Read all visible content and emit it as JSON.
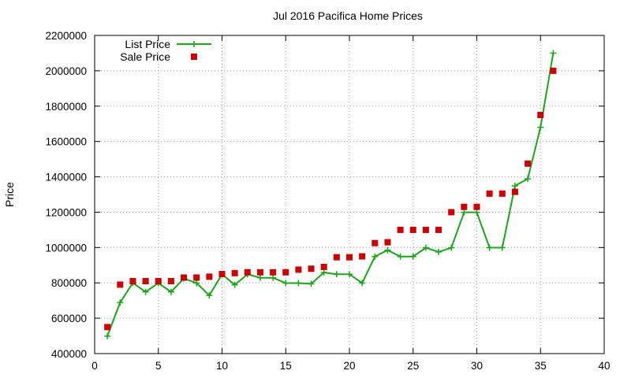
{
  "chart_data": {
    "type": "line",
    "title": "Jul 2016 Pacifica Home Prices",
    "xlabel": "",
    "ylabel": "Price",
    "xlim": [
      0,
      40
    ],
    "ylim": [
      400000,
      2200000
    ],
    "x_ticks": [
      "0",
      "5",
      "10",
      "15",
      "20",
      "25",
      "30",
      "35",
      "40"
    ],
    "y_ticks": [
      "400000",
      "600000",
      "800000",
      "1000000",
      "1200000",
      "1400000",
      "1600000",
      "1800000",
      "2000000",
      "2200000"
    ],
    "grid": true,
    "legend_position": "top-left",
    "series": [
      {
        "name": "List Price",
        "style": "line-with-plus-markers",
        "color": "#1aa51a",
        "points": [
          [
            1,
            499000
          ],
          [
            2,
            689000
          ],
          [
            3,
            800000
          ],
          [
            4,
            749000
          ],
          [
            5,
            799000
          ],
          [
            6,
            749000
          ],
          [
            7,
            825000
          ],
          [
            8,
            799000
          ],
          [
            9,
            729000
          ],
          [
            10,
            849000
          ],
          [
            11,
            789000
          ],
          [
            12,
            849000
          ],
          [
            13,
            829000
          ],
          [
            14,
            829000
          ],
          [
            15,
            799000
          ],
          [
            16,
            799000
          ],
          [
            17,
            795000
          ],
          [
            18,
            859000
          ],
          [
            19,
            849000
          ],
          [
            20,
            849000
          ],
          [
            21,
            799000
          ],
          [
            22,
            949000
          ],
          [
            23,
            985000
          ],
          [
            24,
            949000
          ],
          [
            25,
            949000
          ],
          [
            26,
            999000
          ],
          [
            27,
            975000
          ],
          [
            28,
            999000
          ],
          [
            29,
            1199000
          ],
          [
            30,
            1199000
          ],
          [
            31,
            999000
          ],
          [
            32,
            999000
          ],
          [
            33,
            1349000
          ],
          [
            34,
            1389000
          ],
          [
            35,
            1680000
          ],
          [
            36,
            2100000
          ]
        ]
      },
      {
        "name": "Sale Price",
        "style": "square-markers",
        "color": "#cc0000",
        "points": [
          [
            1,
            550000
          ],
          [
            2,
            790000
          ],
          [
            3,
            810000
          ],
          [
            4,
            810000
          ],
          [
            5,
            810000
          ],
          [
            6,
            810000
          ],
          [
            7,
            830000
          ],
          [
            8,
            830000
          ],
          [
            9,
            835000
          ],
          [
            10,
            850000
          ],
          [
            11,
            855000
          ],
          [
            12,
            860000
          ],
          [
            13,
            860000
          ],
          [
            14,
            860000
          ],
          [
            15,
            860000
          ],
          [
            16,
            875000
          ],
          [
            17,
            880000
          ],
          [
            18,
            890000
          ],
          [
            19,
            945000
          ],
          [
            20,
            945000
          ],
          [
            21,
            950000
          ],
          [
            22,
            1025000
          ],
          [
            23,
            1030000
          ],
          [
            24,
            1100000
          ],
          [
            25,
            1100000
          ],
          [
            26,
            1100000
          ],
          [
            27,
            1100000
          ],
          [
            28,
            1200000
          ],
          [
            29,
            1230000
          ],
          [
            30,
            1230000
          ],
          [
            31,
            1305000
          ],
          [
            32,
            1305000
          ],
          [
            33,
            1315000
          ],
          [
            34,
            1475000
          ],
          [
            35,
            1750000
          ],
          [
            36,
            2000000
          ]
        ]
      }
    ]
  }
}
